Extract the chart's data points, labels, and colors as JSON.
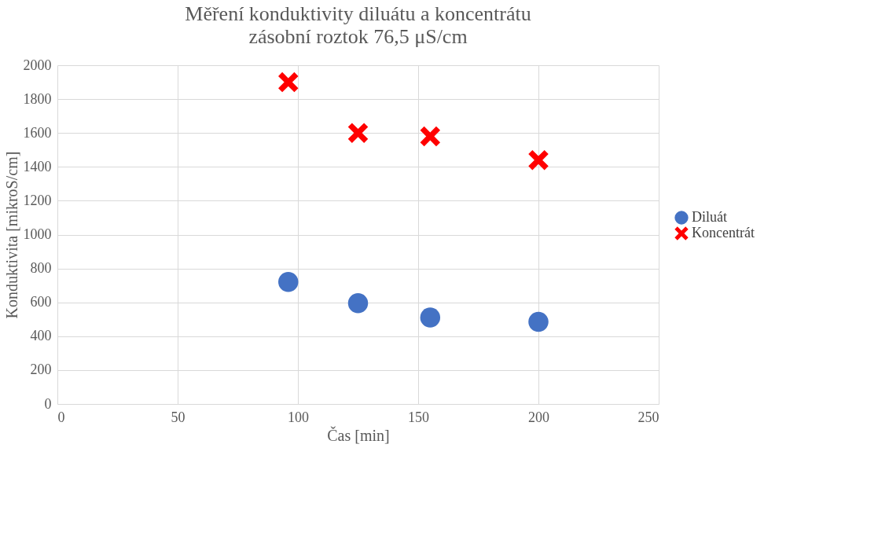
{
  "chart_data": {
    "type": "scatter",
    "title": "Měření konduktivity diluátu a koncentrátu",
    "subtitle": "zásobní roztok 76,5 μS/cm",
    "xlabel": "Čas [min]",
    "ylabel": "Konduktivita [mikroS/cm]",
    "x": [
      96,
      125,
      155,
      200
    ],
    "series": [
      {
        "name": "Diluát",
        "color": "#4472c4",
        "marker": "circle",
        "values": [
          720,
          595,
          510,
          485
        ]
      },
      {
        "name": "Koncentrát",
        "color": "#ff0000",
        "marker": "cross",
        "values": [
          1900,
          1600,
          1580,
          1440
        ]
      }
    ],
    "xlim": [
      0,
      250
    ],
    "xticks": [
      0,
      50,
      100,
      150,
      200,
      250
    ],
    "ylim": [
      0,
      2000
    ],
    "yticks": [
      0,
      200,
      400,
      600,
      800,
      1000,
      1200,
      1400,
      1600,
      1800,
      2000
    ],
    "grid": true,
    "legend": "right"
  }
}
